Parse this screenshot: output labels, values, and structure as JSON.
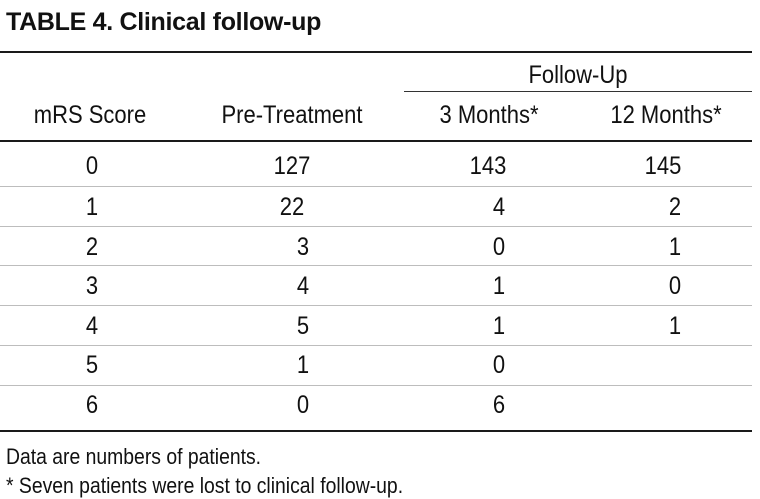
{
  "table": {
    "title": "TABLE 4. Clinical follow-up",
    "group_header": "Follow-Up",
    "columns": [
      "mRS Score",
      "Pre-Treatment",
      "3 Months*",
      "12 Months*"
    ],
    "rows": [
      [
        "0",
        "127",
        "143",
        "145"
      ],
      [
        "1",
        "22",
        "4",
        "2"
      ],
      [
        "2",
        "3",
        "0",
        "1"
      ],
      [
        "3",
        "4",
        "1",
        "0"
      ],
      [
        "4",
        "5",
        "1",
        "1"
      ],
      [
        "5",
        "1",
        "0",
        ""
      ],
      [
        "6",
        "0",
        "6",
        ""
      ]
    ],
    "notes": [
      "Data are numbers of patients.",
      "* Seven patients were lost to clinical follow-up."
    ]
  }
}
